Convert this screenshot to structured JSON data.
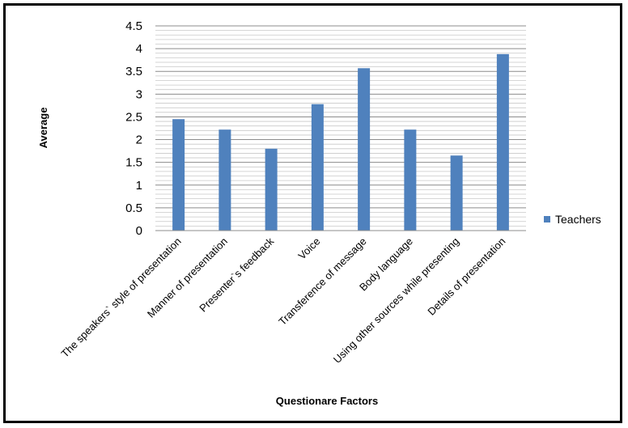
{
  "chart_data": {
    "type": "bar",
    "categories": [
      "The speakers` style of presentation",
      "Manner of presentation",
      "Presenter`s feedback",
      "Voice",
      "Transference of message",
      "Body language",
      "Using other sources while presenting",
      "Details of presentation"
    ],
    "series": [
      {
        "name": "Teachers",
        "values": [
          2.45,
          2.22,
          1.8,
          2.78,
          3.57,
          2.22,
          1.65,
          3.88
        ],
        "color": "#4f81bd"
      }
    ],
    "title": "",
    "xlabel": "Questionare Factors",
    "ylabel": "Average",
    "ylim": [
      0,
      4.5
    ],
    "yticks": [
      "0",
      "0.5",
      "1",
      "1.5",
      "2",
      "2.5",
      "3",
      "3.5",
      "4",
      "4.5"
    ],
    "grid": true,
    "legend": "right"
  }
}
